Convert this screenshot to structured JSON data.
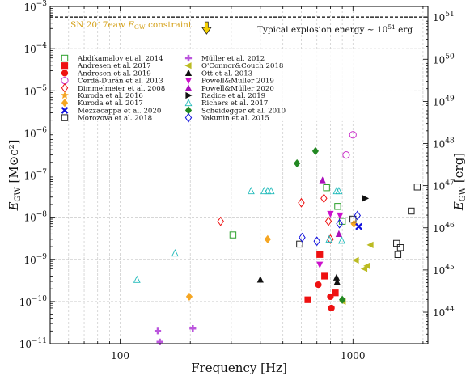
{
  "chart_data": {
    "type": "scatter",
    "xlabel": "Frequency [Hz]",
    "ylabel": "E_GW [M⊙c²]",
    "ylabel_right": "E_GW [erg]",
    "xscale": "log",
    "yscale": "log",
    "xlim": [
      50,
      2100
    ],
    "ylim": [
      1e-11,
      0.001
    ],
    "grid": true,
    "legend_position": "upper-left (two columns)",
    "x_tick_labels": [
      "100",
      "1000"
    ],
    "y_tick_labels": [
      "10^-11",
      "10^-10",
      "10^-9",
      "10^-8",
      "10^-7",
      "10^-6",
      "10^-5",
      "10^-4",
      "10^-3"
    ],
    "y2_tick_labels": [
      "10^44",
      "10^45",
      "10^46",
      "10^47",
      "10^48",
      "10^49",
      "10^50",
      "10^51"
    ],
    "annotations": {
      "constraint_text": "SN 2017eaw E_GW constraint",
      "explosion_text": "Typical explosion energy ∼ 10^51 erg",
      "explosion_energy_msun": 0.00056,
      "constraint_arrow_x": 235
    },
    "series": [
      {
        "name": "Abdikamalov et al. 2014",
        "marker": "square-open",
        "color": "#2ca02c",
        "points": [
          [
            305,
            3.8e-09
          ],
          [
            770,
            5e-08
          ],
          [
            860,
            1.8e-08
          ],
          [
            900,
            8e-09
          ]
        ]
      },
      {
        "name": "Andresen et al. 2017",
        "marker": "square",
        "color": "#ee1111",
        "points": [
          [
            640,
            1.1e-10
          ],
          [
            720,
            1.3e-09
          ],
          [
            755,
            4e-10
          ],
          [
            840,
            1.6e-10
          ]
        ]
      },
      {
        "name": "Andresen et al. 2019",
        "marker": "circle",
        "color": "#ee1111",
        "points": [
          [
            710,
            2.5e-10
          ],
          [
            800,
            1.3e-10
          ],
          [
            808,
            7e-11
          ]
        ]
      },
      {
        "name": "Cerdá-Durán et al. 2013",
        "marker": "circle-open",
        "color": "#cc33cc",
        "points": [
          [
            935,
            3e-07
          ],
          [
            1000,
            9e-07
          ]
        ]
      },
      {
        "name": "Dimmelmeier et al. 2008",
        "marker": "diamond-open",
        "color": "#ee1111",
        "points": [
          [
            270,
            8e-09
          ],
          [
            600,
            2.2e-08
          ],
          [
            750,
            2.8e-08
          ],
          [
            785,
            8e-09
          ],
          [
            800,
            3e-09
          ]
        ]
      },
      {
        "name": "Kuroda et al. 2016",
        "marker": "star",
        "color": "#f5a623",
        "points": []
      },
      {
        "name": "Kuroda et al. 2017",
        "marker": "diamond",
        "color": "#f5a623",
        "points": [
          [
            198,
            1.3e-10
          ],
          [
            430,
            3e-09
          ],
          [
            1010,
            7e-09
          ]
        ]
      },
      {
        "name": "Mezzacappa et al. 2020",
        "marker": "x",
        "color": "#1111dd",
        "points": [
          [
            1060,
            6e-09
          ]
        ]
      },
      {
        "name": "Morozova et al. 2018",
        "marker": "square-open",
        "color": "#222222",
        "points": [
          [
            590,
            2.3e-09
          ],
          [
            1000,
            9e-09
          ],
          [
            1540,
            2.4e-09
          ],
          [
            1560,
            1.3e-09
          ],
          [
            1600,
            1.9e-09
          ],
          [
            1780,
            1.4e-08
          ],
          [
            1890,
            5.2e-08
          ]
        ]
      },
      {
        "name": "Müller et al. 2012",
        "marker": "plus",
        "color": "#bb55dd",
        "points": [
          [
            145,
            2e-11
          ],
          [
            148,
            1.1e-11
          ],
          [
            205,
            2.3e-11
          ]
        ]
      },
      {
        "name": "O'Connor&Couch 2018",
        "marker": "triangle-left",
        "color": "#bbbb22",
        "points": [
          [
            905,
            1e-10
          ],
          [
            1030,
            9.5e-10
          ],
          [
            1120,
            6e-10
          ],
          [
            1150,
            7e-10
          ],
          [
            1190,
            2.2e-09
          ]
        ]
      },
      {
        "name": "Ott et al. 2013",
        "marker": "triangle-up",
        "color": "#111111",
        "points": [
          [
            400,
            3.3e-10
          ],
          [
            850,
            3.7e-10
          ],
          [
            855,
            2.9e-10
          ]
        ]
      },
      {
        "name": "Powell&Müller 2019",
        "marker": "triangle-down",
        "color": "#cc11cc",
        "points": [
          [
            720,
            7.5e-10
          ],
          [
            800,
            1.2e-08
          ],
          [
            880,
            1.1e-08
          ]
        ]
      },
      {
        "name": "Powell&Müller 2020",
        "marker": "triangle-up",
        "color": "#aa11bb",
        "points": [
          [
            740,
            7.5e-08
          ],
          [
            870,
            4e-09
          ]
        ]
      },
      {
        "name": "Radice et al. 2019",
        "marker": "triangle-right",
        "color": "#111111",
        "points": [
          [
            1130,
            2.8e-08
          ]
        ]
      },
      {
        "name": "Richers et al. 2017",
        "marker": "triangle-up-open",
        "color": "#22bbbb",
        "points": [
          [
            118,
            3.3e-10
          ],
          [
            172,
            1.4e-09
          ],
          [
            365,
            4.2e-08
          ],
          [
            415,
            4.2e-08
          ],
          [
            430,
            4.2e-08
          ],
          [
            445,
            4.2e-08
          ],
          [
            790,
            3e-09
          ],
          [
            850,
            4.2e-08
          ],
          [
            870,
            4.2e-08
          ],
          [
            895,
            2.8e-09
          ]
        ]
      },
      {
        "name": "Scheidegger et al. 2010",
        "marker": "diamond",
        "color": "#228822",
        "points": [
          [
            575,
            1.9e-07
          ],
          [
            690,
            3.7e-07
          ],
          [
            900,
            1.1e-10
          ]
        ]
      },
      {
        "name": "Yakunin et al. 2015",
        "marker": "diamond-open",
        "color": "#1111dd",
        "points": [
          [
            605,
            3.3e-09
          ],
          [
            700,
            2.7e-09
          ],
          [
            875,
            7e-09
          ],
          [
            1045,
            1.1e-08
          ]
        ]
      }
    ]
  }
}
